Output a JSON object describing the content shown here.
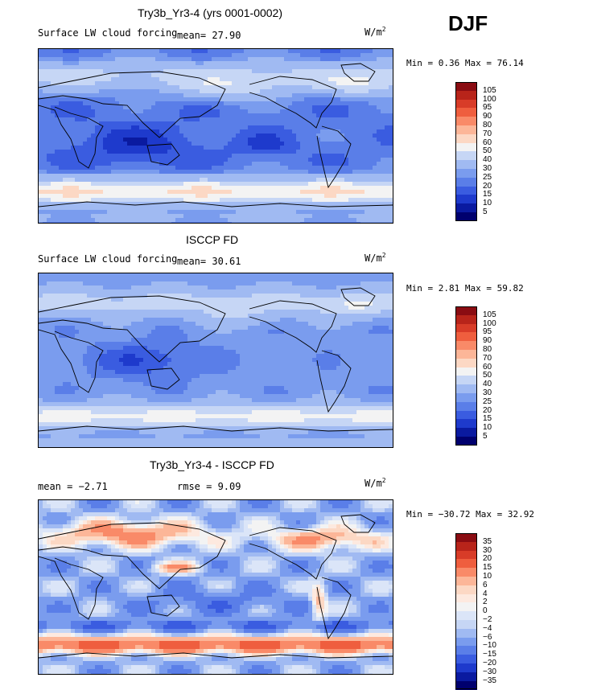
{
  "season": "DJF",
  "panels": [
    {
      "title": "Try3b_Yr3-4 (yrs 0001-0002)",
      "variable": "Surface LW cloud forcing",
      "stat1": "mean=  27.90",
      "stat2": "",
      "units": "W/m",
      "units_sup": "2",
      "minmax": "Min =   0.36 Max =  76.14",
      "levels": [
        "105",
        "100",
        "95",
        "90",
        "80",
        "70",
        "60",
        "50",
        "40",
        "30",
        "25",
        "20",
        "15",
        "10",
        "5"
      ],
      "colors": [
        "#8a0c12",
        "#b8241a",
        "#d83c28",
        "#ef5e3e",
        "#f98a68",
        "#fcb698",
        "#fcd8c4",
        "#f3f3f3",
        "#c6d6f5",
        "#a0baf2",
        "#7a9cee",
        "#5a7ee8",
        "#3a5ce0",
        "#1e3acc",
        "#0a1aa0",
        "#00006e"
      ],
      "map_type": "model"
    },
    {
      "title": "ISCCP FD",
      "variable": "Surface LW cloud forcing",
      "stat1": "mean=  30.61",
      "stat2": "",
      "units": "W/m",
      "units_sup": "2",
      "minmax": "Min =   2.81 Max =  59.82",
      "levels": [
        "105",
        "100",
        "95",
        "90",
        "80",
        "70",
        "60",
        "50",
        "40",
        "30",
        "25",
        "20",
        "15",
        "10",
        "5"
      ],
      "colors": [
        "#8a0c12",
        "#b8241a",
        "#d83c28",
        "#ef5e3e",
        "#f98a68",
        "#fcb698",
        "#fcd8c4",
        "#f3f3f3",
        "#c6d6f5",
        "#a0baf2",
        "#7a9cee",
        "#5a7ee8",
        "#3a5ce0",
        "#1e3acc",
        "#0a1aa0",
        "#00006e"
      ],
      "map_type": "obs"
    },
    {
      "title": "Try3b_Yr3-4 - ISCCP FD",
      "variable": "",
      "stat1": "mean =  −2.71",
      "stat2": "rmse =   9.09",
      "units": "W/m",
      "units_sup": "2",
      "minmax": "Min = −30.72 Max =  32.92",
      "levels": [
        "35",
        "30",
        "20",
        "15",
        "10",
        "6",
        "4",
        "2",
        "0",
        "−2",
        "−4",
        "−6",
        "−10",
        "−15",
        "−20",
        "−30",
        "−35"
      ],
      "colors": [
        "#8a0c12",
        "#b8241a",
        "#d83c28",
        "#ef5e3e",
        "#f98a68",
        "#fcb698",
        "#fcd8c4",
        "#fde9df",
        "#f3f3f3",
        "#dbe5f8",
        "#c6d6f5",
        "#a0baf2",
        "#7a9cee",
        "#5a7ee8",
        "#3a5ce0",
        "#1e3acc",
        "#0a1aa0",
        "#00006e"
      ],
      "map_type": "diff"
    }
  ]
}
